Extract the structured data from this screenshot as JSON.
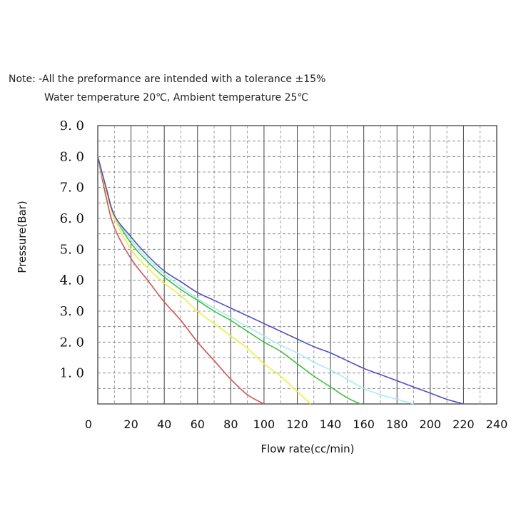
{
  "note": {
    "line1": "Note: -All the preformance are intended with a tolerance ±15%",
    "line2": "Water temperature 20℃, Ambient temperature 25℃"
  },
  "chart_data": {
    "type": "line",
    "xlabel": "Flow rate(cc/min)",
    "ylabel": "Pressure(Bar)",
    "xlim": [
      0,
      240
    ],
    "ylim": [
      0,
      9
    ],
    "x_ticks": [
      "0",
      "20",
      "40",
      "60",
      "80",
      "100",
      "120",
      "140",
      "160",
      "180",
      "200",
      "220",
      "240"
    ],
    "y_ticks": [
      {
        "value": 9,
        "label": "9. 0"
      },
      {
        "value": 8,
        "label": "8. 0"
      },
      {
        "value": 7,
        "label": "7. 0"
      },
      {
        "value": 6,
        "label": "6. 0"
      },
      {
        "value": 5,
        "label": "5. 0"
      },
      {
        "value": 4,
        "label": "4. 0"
      },
      {
        "value": 3,
        "label": "3. 0"
      },
      {
        "value": 2,
        "label": "2. 0"
      },
      {
        "value": 1,
        "label": "1. 0"
      }
    ],
    "grid": true,
    "series": [
      {
        "color": "#e05050",
        "x": [
          0,
          5,
          10,
          20,
          30,
          40,
          50,
          60,
          70,
          80,
          90,
          100
        ],
        "y": [
          8.0,
          6.7,
          5.7,
          4.7,
          4.0,
          3.3,
          2.7,
          2.0,
          1.4,
          0.8,
          0.3,
          0.0
        ]
      },
      {
        "color": "#f0f040",
        "x": [
          0,
          5,
          10,
          20,
          30,
          40,
          50,
          60,
          70,
          80,
          90,
          100,
          110,
          120,
          128
        ],
        "y": [
          8.0,
          6.9,
          6.0,
          5.0,
          4.4,
          3.9,
          3.5,
          3.0,
          2.6,
          2.2,
          1.8,
          1.3,
          0.9,
          0.4,
          0.0
        ]
      },
      {
        "color": "#40c040",
        "x": [
          0,
          5,
          10,
          20,
          30,
          40,
          50,
          60,
          70,
          80,
          90,
          100,
          110,
          120,
          130,
          140,
          150,
          158
        ],
        "y": [
          8.0,
          7.0,
          6.1,
          5.2,
          4.6,
          4.1,
          3.7,
          3.35,
          3.0,
          2.7,
          2.35,
          2.0,
          1.7,
          1.3,
          0.9,
          0.55,
          0.2,
          0.0
        ]
      },
      {
        "color": "#a8ecf0",
        "x": [
          0,
          5,
          10,
          20,
          30,
          40,
          50,
          60,
          70,
          80,
          90,
          100,
          110,
          120,
          130,
          140,
          150,
          160,
          170,
          180,
          190
        ],
        "y": [
          8.0,
          7.0,
          6.1,
          5.3,
          4.7,
          4.2,
          3.8,
          3.4,
          3.1,
          2.8,
          2.5,
          2.2,
          1.9,
          1.65,
          1.35,
          1.1,
          0.8,
          0.5,
          0.3,
          0.15,
          0.0
        ]
      },
      {
        "color": "#5050c0",
        "x": [
          0,
          5,
          10,
          20,
          30,
          40,
          50,
          60,
          70,
          80,
          90,
          100,
          110,
          120,
          130,
          140,
          150,
          160,
          170,
          180,
          190,
          200,
          210,
          220
        ],
        "y": [
          8.0,
          7.0,
          6.1,
          5.4,
          4.8,
          4.3,
          3.95,
          3.6,
          3.35,
          3.1,
          2.85,
          2.6,
          2.35,
          2.1,
          1.85,
          1.65,
          1.4,
          1.15,
          0.95,
          0.75,
          0.55,
          0.35,
          0.15,
          0.0
        ]
      }
    ]
  }
}
